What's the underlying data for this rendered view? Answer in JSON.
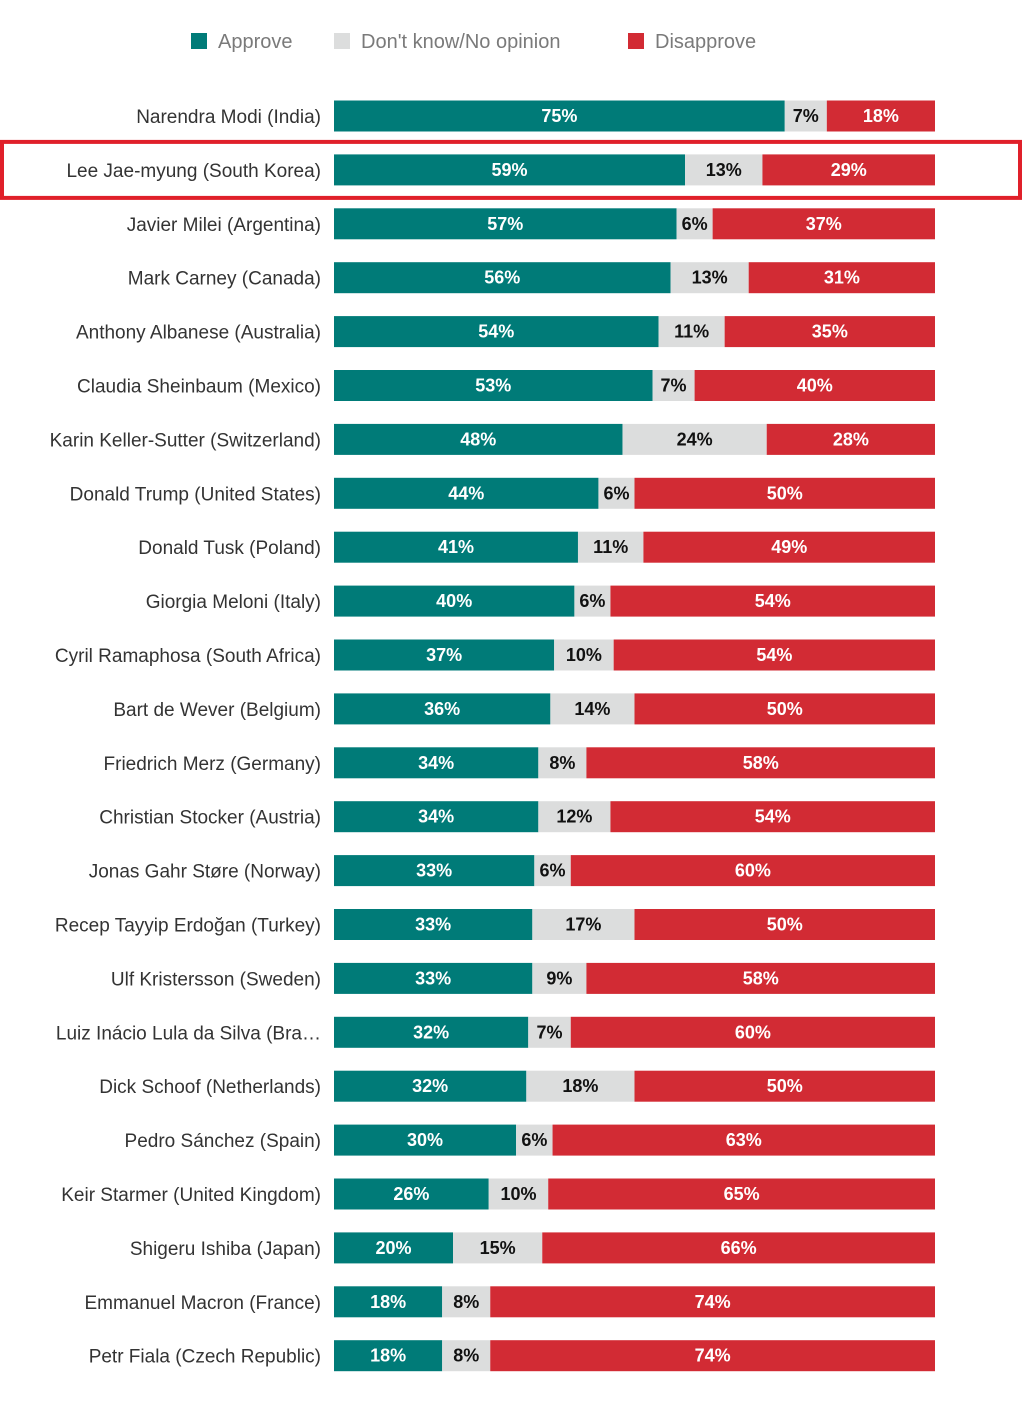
{
  "chart_data": {
    "type": "bar",
    "orientation": "horizontal",
    "stacked": true,
    "xlim": [
      0,
      100
    ],
    "legend_position": "top",
    "series": [
      {
        "name": "Approve",
        "color": "#007b78",
        "values": [
          75,
          59,
          57,
          56,
          54,
          53,
          48,
          44,
          41,
          40,
          37,
          36,
          34,
          34,
          33,
          33,
          33,
          32,
          32,
          30,
          26,
          20,
          18,
          18
        ]
      },
      {
        "name": "Don't know/No opinion",
        "color": "#dcdddd",
        "values": [
          7,
          13,
          6,
          13,
          11,
          7,
          24,
          6,
          11,
          6,
          10,
          14,
          8,
          12,
          6,
          17,
          9,
          7,
          18,
          6,
          10,
          15,
          8,
          8
        ]
      },
      {
        "name": "Disapprove",
        "color": "#d22b34",
        "values": [
          18,
          29,
          37,
          31,
          35,
          40,
          28,
          50,
          49,
          54,
          54,
          50,
          58,
          54,
          60,
          50,
          58,
          60,
          50,
          63,
          65,
          66,
          74,
          74
        ]
      }
    ],
    "categories": [
      "Narendra Modi (India)",
      "Lee Jae-myung (South Korea)",
      "Javier Milei (Argentina)",
      "Mark Carney (Canada)",
      "Anthony Albanese (Australia)",
      "Claudia Sheinbaum (Mexico)",
      "Karin Keller-Sutter (Switzerland)",
      "Donald Trump (United States)",
      "Donald Tusk (Poland)",
      "Giorgia Meloni (Italy)",
      "Cyril Ramaphosa (South Africa)",
      "Bart de Wever (Belgium)",
      "Friedrich Merz (Germany)",
      "Christian Stocker (Austria)",
      "Jonas Gahr Støre (Norway)",
      "Recep Tayyip Erdoğan (Turkey)",
      "Ulf Kristersson (Sweden)",
      "Luiz Inácio Lula da Silva (Bra…",
      "Dick Schoof (Netherlands)",
      "Pedro Sánchez (Spain)",
      "Keir Starmer (United Kingdom)",
      "Shigeru Ishiba (Japan)",
      "Emmanuel Macron (France)",
      "Petr Fiala (Czech Republic)"
    ],
    "highlighted_category": "Lee Jae-myung (South Korea)",
    "highlight_color": "#e0202a",
    "value_suffix": "%",
    "label_color_on_dark": "#ffffff",
    "label_color_on_light": "#111111"
  }
}
